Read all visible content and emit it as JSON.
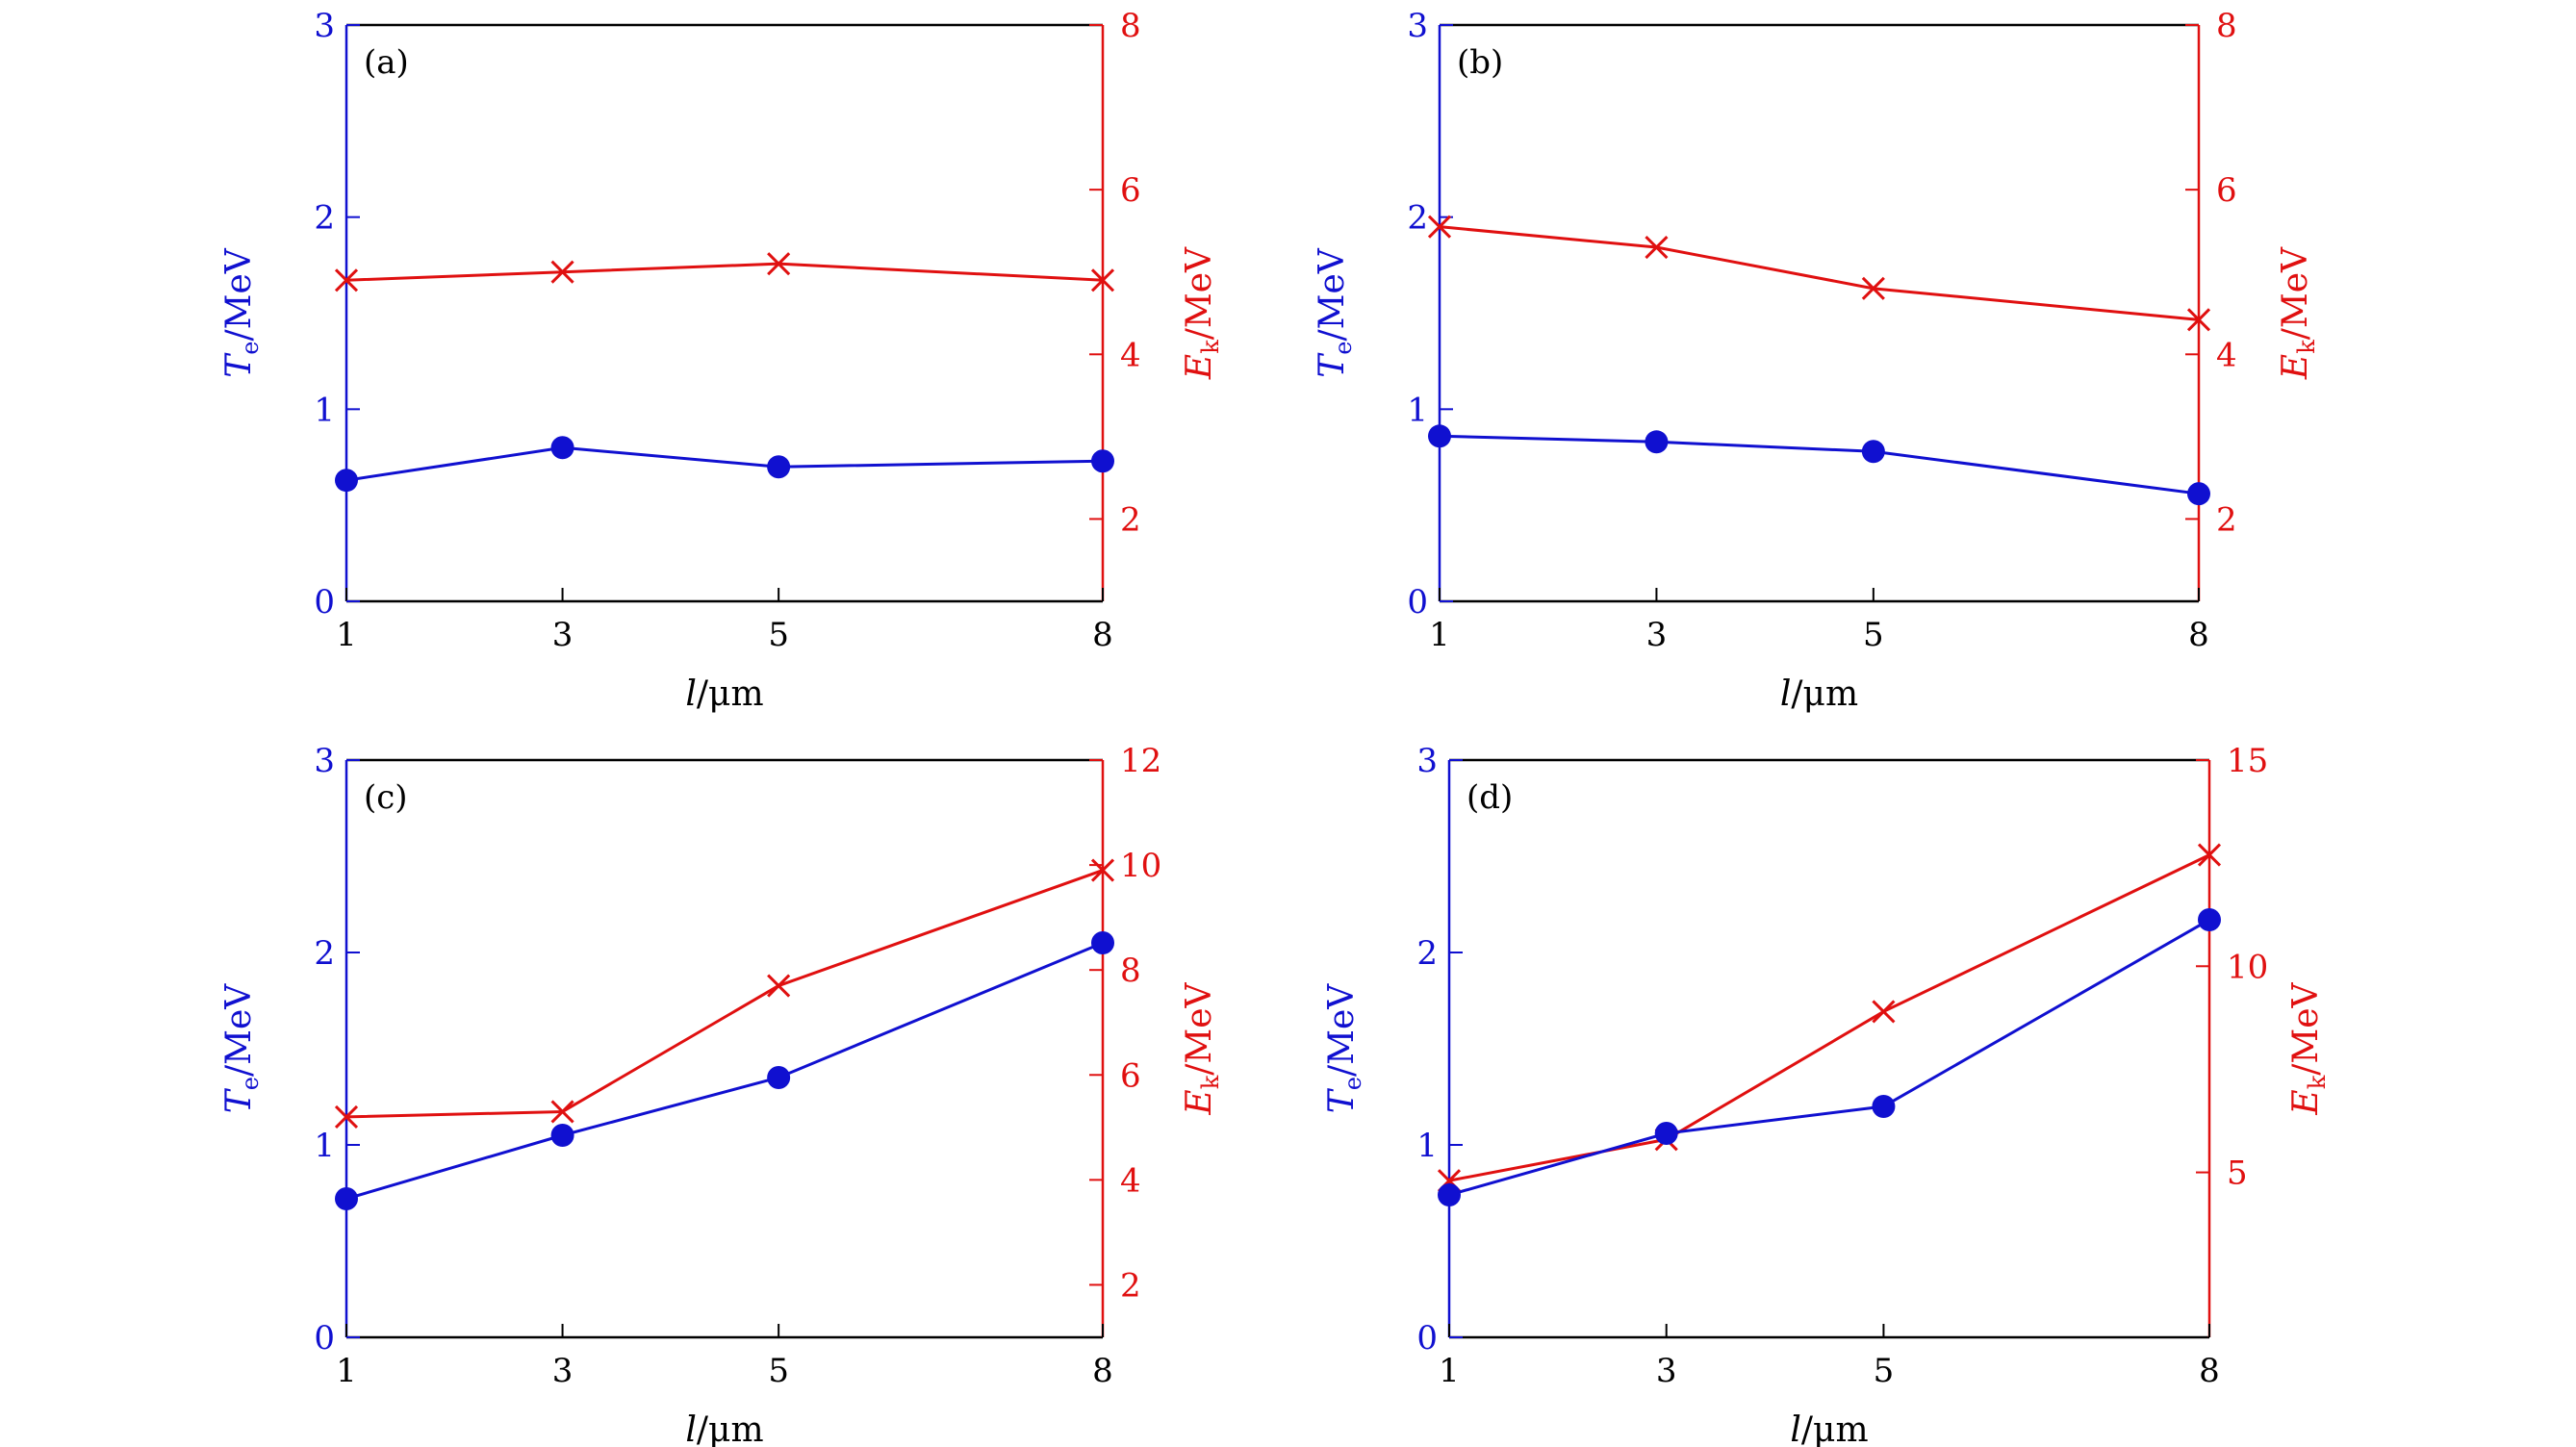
{
  "colors": {
    "left_axis": "#1010d0",
    "right_axis": "#e01010",
    "frame": "#000000"
  },
  "chart_data": [
    {
      "type": "line",
      "panel": "(a)",
      "x": [
        1,
        3,
        5,
        8
      ],
      "xticks": [
        "1",
        "3",
        "5",
        "8"
      ],
      "xlabel_var": "l",
      "xlabel_unit": "/μm",
      "left": {
        "label_var": "T",
        "label_sub": "e",
        "label_unit": "/MeV",
        "ylim": [
          0,
          3
        ],
        "ticks": [
          0,
          1,
          2,
          3
        ],
        "values": [
          0.63,
          0.8,
          0.7,
          0.73
        ]
      },
      "right": {
        "label_var": "E",
        "label_sub": "k",
        "label_unit": "/MeV",
        "ylim": [
          1,
          8
        ],
        "ticks": [
          2,
          4,
          6,
          8
        ],
        "values": [
          4.9,
          5.0,
          5.1,
          4.9
        ]
      }
    },
    {
      "type": "line",
      "panel": "(b)",
      "x": [
        1,
        3,
        5,
        8
      ],
      "xticks": [
        "1",
        "3",
        "5",
        "8"
      ],
      "xlabel_var": "l",
      "xlabel_unit": "/μm",
      "left": {
        "label_var": "T",
        "label_sub": "e",
        "label_unit": "/MeV",
        "ylim": [
          0,
          3
        ],
        "ticks": [
          0,
          1,
          2,
          3
        ],
        "values": [
          0.86,
          0.83,
          0.78,
          0.56
        ]
      },
      "right": {
        "label_var": "E",
        "label_sub": "k",
        "label_unit": "/MeV",
        "ylim": [
          1,
          8
        ],
        "ticks": [
          2,
          4,
          6,
          8
        ],
        "values": [
          5.55,
          5.3,
          4.8,
          4.42
        ]
      }
    },
    {
      "type": "line",
      "panel": "(c)",
      "x": [
        1,
        3,
        5,
        8
      ],
      "xticks": [
        "1",
        "3",
        "5",
        "8"
      ],
      "xlabel_var": "l",
      "xlabel_unit": "/μm",
      "left": {
        "label_var": "T",
        "label_sub": "e",
        "label_unit": "/MeV",
        "ylim": [
          0,
          3
        ],
        "ticks": [
          0,
          1,
          2,
          3
        ],
        "values": [
          0.72,
          1.05,
          1.35,
          2.05
        ]
      },
      "right": {
        "label_var": "E",
        "label_sub": "k",
        "label_unit": "/MeV",
        "ylim": [
          1,
          12
        ],
        "ticks": [
          2,
          4,
          6,
          8,
          10,
          12
        ],
        "values": [
          5.2,
          5.3,
          7.7,
          9.9
        ]
      }
    },
    {
      "type": "line",
      "panel": "(d)",
      "x": [
        1,
        3,
        5,
        8
      ],
      "xticks": [
        "1",
        "3",
        "5",
        "8"
      ],
      "xlabel_var": "l",
      "xlabel_unit": "/μm",
      "left": {
        "label_var": "T",
        "label_sub": "e",
        "label_unit": "/MeV",
        "ylim": [
          0,
          3
        ],
        "ticks": [
          0,
          1,
          2,
          3
        ],
        "values": [
          0.74,
          1.06,
          1.2,
          2.17
        ]
      },
      "right": {
        "label_var": "E",
        "label_sub": "k",
        "label_unit": "/MeV",
        "ylim": [
          1,
          15
        ],
        "ticks": [
          5,
          10,
          15
        ],
        "values": [
          4.8,
          5.8,
          8.9,
          12.7
        ]
      }
    }
  ]
}
